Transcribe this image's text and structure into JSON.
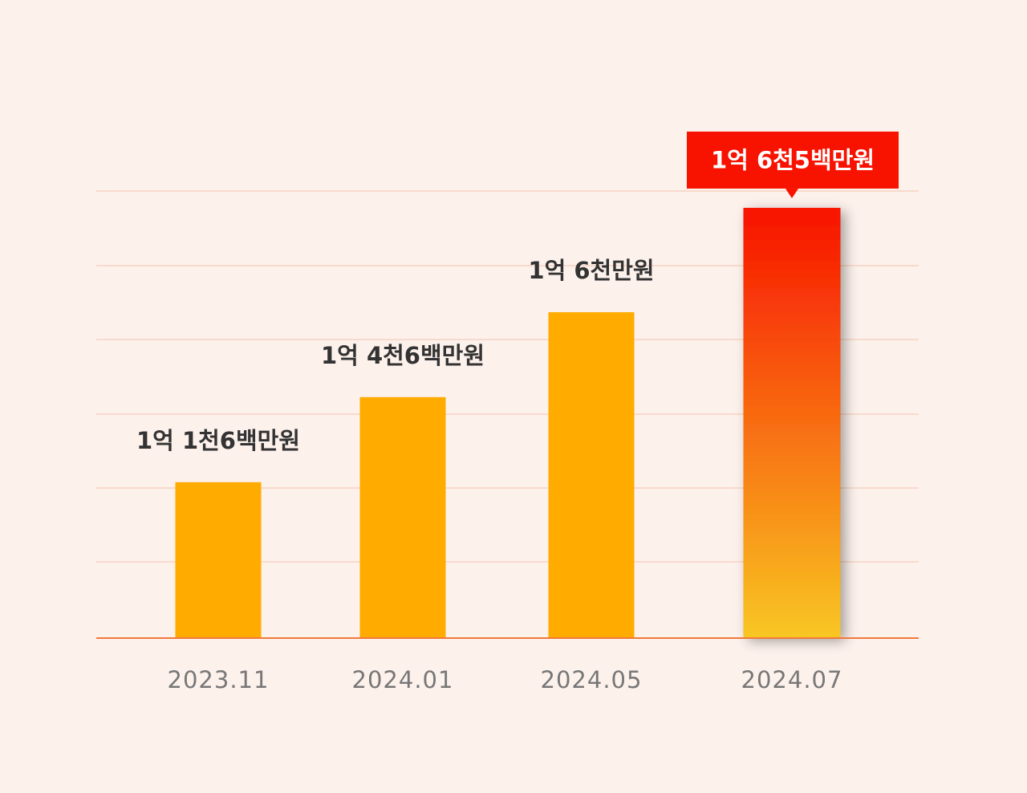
{
  "chart_data": {
    "type": "bar",
    "title": "",
    "xlabel": "",
    "ylabel": "",
    "categories": [
      "2023.11",
      "2024.01",
      "2024.05",
      "2024.07"
    ],
    "values": [
      11600,
      14600,
      16000,
      16500
    ],
    "value_unit": "만원",
    "data_labels": [
      "1억 1천6백만원",
      "1억 4천6백만원",
      "1억 6천만원",
      "1억 6천5백만원"
    ],
    "highlight_index": 3,
    "grid": true,
    "legend": "none",
    "colors": {
      "bar": "#ffab00",
      "highlight_top": "#f81200",
      "highlight_bottom": "#f8c723",
      "callout": "#f81200",
      "gridline": "#f6d3c2",
      "baseline": "#f07a3a",
      "background": "#fdf1ec"
    }
  }
}
